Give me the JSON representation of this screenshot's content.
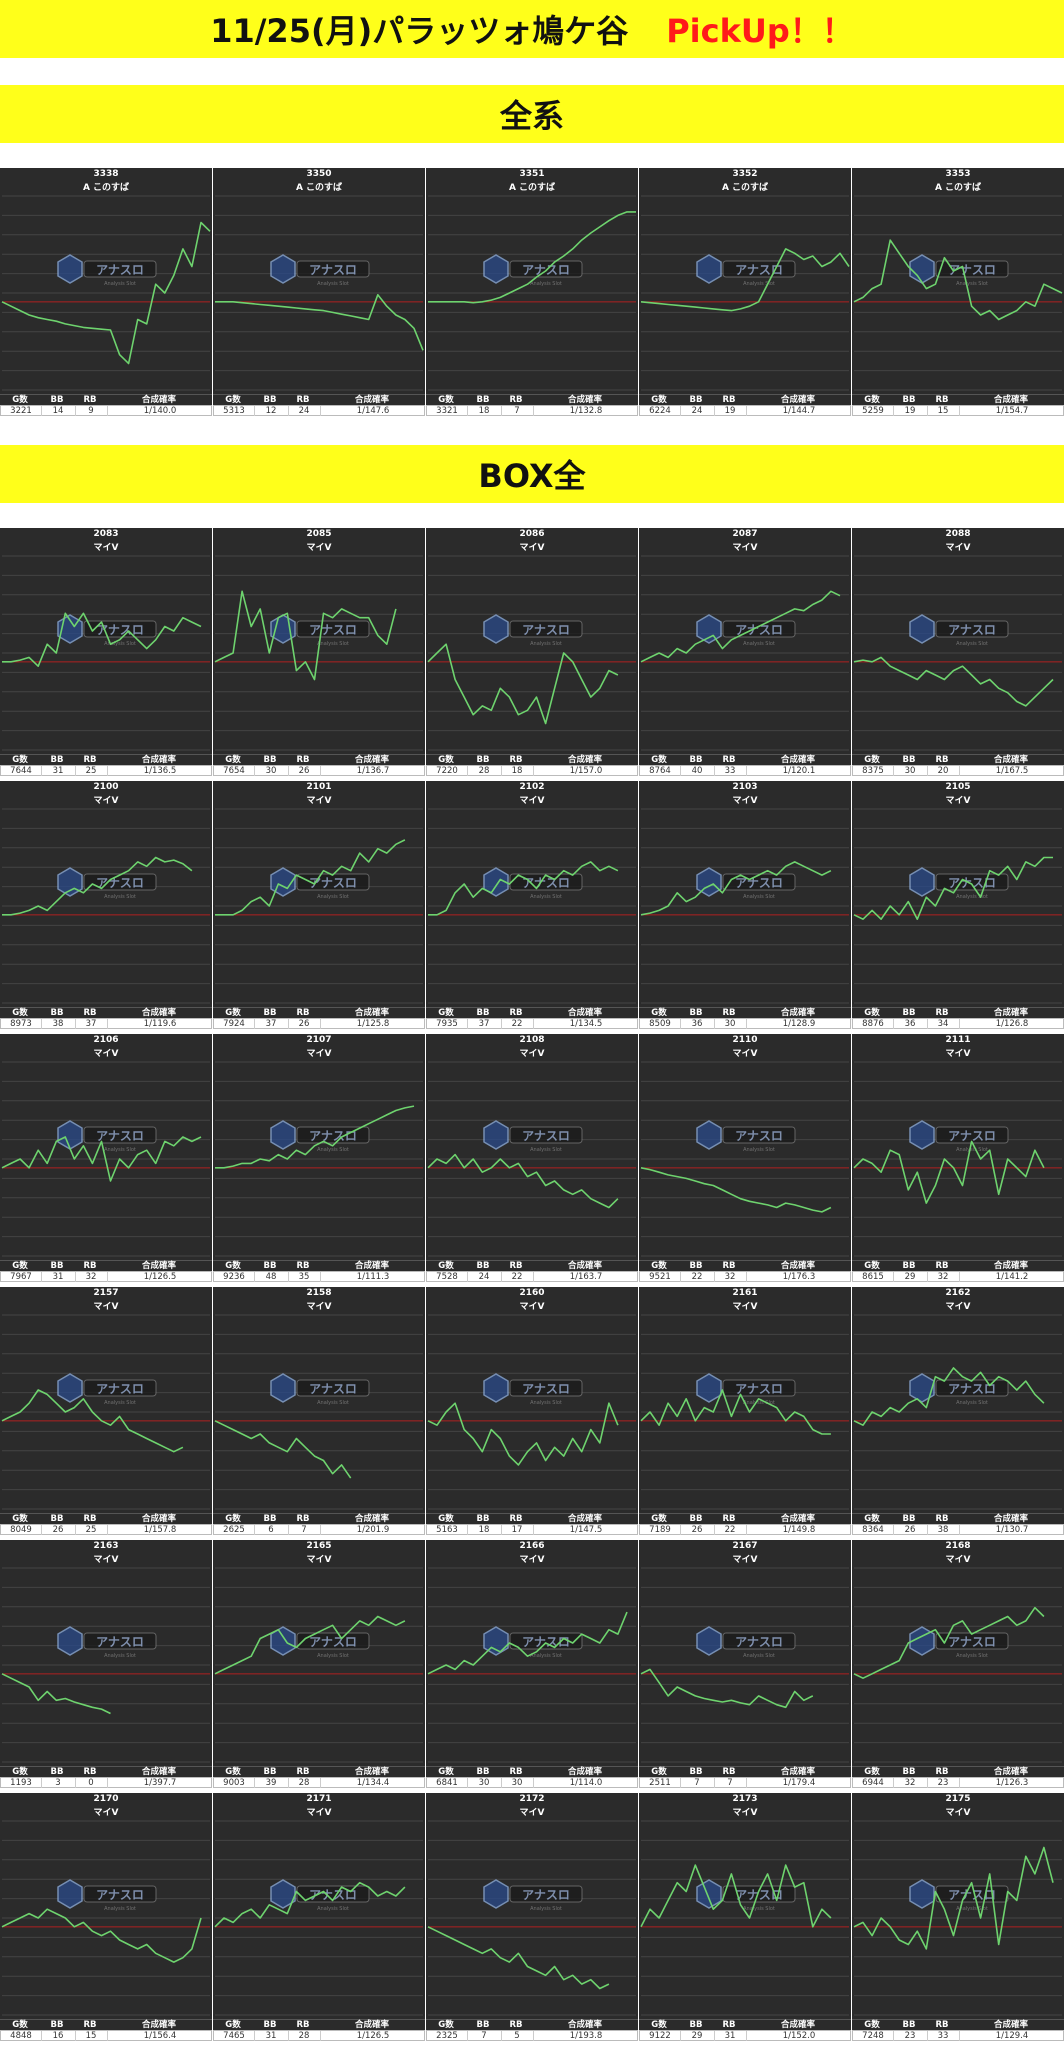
{
  "title": {
    "main": "11/25(月)パラッツォ鳩ケ谷",
    "pick": "PickUp！！",
    "color": "#ff1a1a"
  },
  "headers": {
    "g": "G数",
    "bb": "BB",
    "rb": "RB",
    "prob": "合成確率"
  },
  "watermark": {
    "text": "アナスロ",
    "sub": "Analysis Slot"
  },
  "sections": [
    {
      "label": "全系"
    },
    {
      "label": "BOX全"
    }
  ],
  "chart_data": [
    {
      "section": 0,
      "type": "line",
      "machine": "3338",
      "name": "A このすば",
      "g": "3221",
      "bb": "14",
      "rb": "9",
      "prob": "1/140.0",
      "values": [
        0,
        -5,
        -10,
        -15,
        -18,
        -20,
        -22,
        -25,
        -27,
        -29,
        -30,
        -31,
        -32,
        -60,
        -70,
        -20,
        -25,
        20,
        10,
        30,
        60,
        40,
        90,
        80
      ]
    },
    {
      "section": 0,
      "type": "line",
      "machine": "3350",
      "name": "A このすば",
      "g": "5313",
      "bb": "12",
      "rb": "24",
      "prob": "1/147.6",
      "values": [
        0,
        0,
        0,
        -1,
        -2,
        -3,
        -4,
        -5,
        -6,
        -7,
        -8,
        -9,
        -10,
        -12,
        -14,
        -16,
        -18,
        -20,
        8,
        -5,
        -15,
        -20,
        -30,
        -55
      ]
    },
    {
      "section": 0,
      "type": "line",
      "machine": "3351",
      "name": "A このすば",
      "g": "3321",
      "bb": "18",
      "rb": "7",
      "prob": "1/132.8",
      "values": [
        0,
        0,
        0,
        0,
        0,
        -1,
        0,
        2,
        5,
        10,
        15,
        20,
        28,
        35,
        45,
        52,
        60,
        70,
        78,
        85,
        92,
        98,
        102,
        102
      ]
    },
    {
      "section": 0,
      "type": "line",
      "machine": "3352",
      "name": "A このすば",
      "g": "6224",
      "bb": "24",
      "rb": "19",
      "prob": "1/144.7",
      "values": [
        0,
        -1,
        -2,
        -3,
        -4,
        -5,
        -6,
        -7,
        -8,
        -9,
        -10,
        -8,
        -5,
        0,
        20,
        40,
        60,
        55,
        48,
        52,
        40,
        45,
        55,
        40
      ]
    },
    {
      "section": 0,
      "type": "line",
      "machine": "3353",
      "name": "A このすば",
      "g": "5259",
      "bb": "19",
      "rb": "15",
      "prob": "1/154.7",
      "values": [
        0,
        5,
        15,
        20,
        70,
        55,
        40,
        30,
        15,
        20,
        50,
        35,
        40,
        -5,
        -15,
        -10,
        -20,
        -15,
        -10,
        0,
        -5,
        20,
        15,
        10
      ]
    },
    {
      "section": 1,
      "type": "line",
      "machine": "2083",
      "name": "マイV",
      "g": "7644",
      "bb": "31",
      "rb": "25",
      "prob": "1/136.5",
      "values": [
        0,
        0,
        2,
        5,
        -5,
        20,
        10,
        55,
        40,
        55,
        35,
        45,
        20,
        25,
        35,
        25,
        15,
        25,
        40,
        35,
        50,
        45,
        40
      ]
    },
    {
      "section": 1,
      "type": "line",
      "machine": "2085",
      "name": "マイV",
      "g": "7654",
      "bb": "30",
      "rb": "26",
      "prob": "1/136.7",
      "values": [
        0,
        5,
        10,
        80,
        40,
        60,
        10,
        50,
        55,
        -10,
        0,
        -20,
        55,
        50,
        60,
        55,
        50,
        50,
        30,
        20,
        60
      ]
    },
    {
      "section": 1,
      "type": "line",
      "machine": "2086",
      "name": "マイV",
      "g": "7220",
      "bb": "28",
      "rb": "18",
      "prob": "1/157.0",
      "values": [
        0,
        10,
        20,
        -20,
        -40,
        -60,
        -50,
        -55,
        -30,
        -40,
        -60,
        -55,
        -40,
        -70,
        -30,
        10,
        0,
        -20,
        -40,
        -30,
        -10,
        -15
      ]
    },
    {
      "section": 1,
      "type": "line",
      "machine": "2087",
      "name": "マイV",
      "g": "8764",
      "bb": "40",
      "rb": "33",
      "prob": "1/120.1",
      "values": [
        0,
        5,
        10,
        5,
        15,
        10,
        20,
        25,
        30,
        15,
        25,
        30,
        35,
        40,
        45,
        50,
        55,
        60,
        58,
        65,
        70,
        80,
        75
      ]
    },
    {
      "section": 1,
      "type": "line",
      "machine": "2088",
      "name": "マイV",
      "g": "8375",
      "bb": "30",
      "rb": "20",
      "prob": "1/167.5",
      "values": [
        0,
        2,
        0,
        5,
        -5,
        -10,
        -15,
        -20,
        -10,
        -15,
        -20,
        -10,
        -5,
        -15,
        -25,
        -20,
        -30,
        -35,
        -45,
        -50,
        -40,
        -30,
        -20
      ]
    },
    {
      "section": 1,
      "type": "line",
      "machine": "2100",
      "name": "マイV",
      "g": "8973",
      "bb": "38",
      "rb": "37",
      "prob": "1/119.6",
      "values": [
        0,
        0,
        2,
        5,
        10,
        5,
        15,
        25,
        30,
        25,
        35,
        30,
        40,
        45,
        50,
        60,
        55,
        65,
        60,
        62,
        58,
        50
      ]
    },
    {
      "section": 1,
      "type": "line",
      "machine": "2101",
      "name": "マイV",
      "g": "7924",
      "bb": "37",
      "rb": "26",
      "prob": "1/125.8",
      "values": [
        0,
        0,
        0,
        5,
        15,
        20,
        10,
        35,
        30,
        45,
        40,
        35,
        50,
        45,
        55,
        50,
        70,
        60,
        75,
        70,
        80,
        85
      ]
    },
    {
      "section": 1,
      "type": "line",
      "machine": "2102",
      "name": "マイV",
      "g": "7935",
      "bb": "37",
      "rb": "22",
      "prob": "1/134.5",
      "values": [
        0,
        0,
        5,
        25,
        35,
        20,
        30,
        25,
        40,
        35,
        45,
        40,
        30,
        45,
        40,
        50,
        45,
        55,
        60,
        50,
        55,
        50
      ]
    },
    {
      "section": 1,
      "type": "line",
      "machine": "2103",
      "name": "マイV",
      "g": "8509",
      "bb": "36",
      "rb": "30",
      "prob": "1/128.9",
      "values": [
        0,
        2,
        5,
        10,
        25,
        15,
        20,
        30,
        35,
        25,
        40,
        45,
        40,
        45,
        50,
        45,
        55,
        60,
        55,
        50,
        45,
        50
      ]
    },
    {
      "section": 1,
      "type": "line",
      "machine": "2105",
      "name": "マイV",
      "g": "8876",
      "bb": "36",
      "rb": "34",
      "prob": "1/126.8",
      "values": [
        0,
        -5,
        5,
        -5,
        10,
        0,
        15,
        -5,
        20,
        10,
        30,
        25,
        40,
        35,
        20,
        50,
        45,
        55,
        40,
        60,
        55,
        65,
        65
      ]
    },
    {
      "section": 1,
      "type": "line",
      "machine": "2106",
      "name": "マイV",
      "g": "7967",
      "bb": "31",
      "rb": "32",
      "prob": "1/126.5",
      "values": [
        0,
        5,
        10,
        0,
        20,
        5,
        30,
        35,
        10,
        25,
        5,
        30,
        -15,
        10,
        0,
        15,
        20,
        5,
        30,
        25,
        35,
        30,
        35
      ]
    },
    {
      "section": 1,
      "type": "line",
      "machine": "2107",
      "name": "マイV",
      "g": "9236",
      "bb": "48",
      "rb": "35",
      "prob": "1/111.3",
      "values": [
        0,
        0,
        2,
        5,
        5,
        10,
        8,
        15,
        10,
        20,
        15,
        25,
        30,
        25,
        35,
        40,
        45,
        50,
        55,
        60,
        65,
        68,
        70
      ]
    },
    {
      "section": 1,
      "type": "line",
      "machine": "2108",
      "name": "マイV",
      "g": "7528",
      "bb": "24",
      "rb": "22",
      "prob": "1/163.7",
      "values": [
        0,
        10,
        5,
        15,
        0,
        10,
        -5,
        0,
        10,
        0,
        5,
        -10,
        -5,
        -20,
        -15,
        -25,
        -30,
        -25,
        -35,
        -40,
        -45,
        -35
      ]
    },
    {
      "section": 1,
      "type": "line",
      "machine": "2110",
      "name": "マイV",
      "g": "9521",
      "bb": "22",
      "rb": "32",
      "prob": "1/176.3",
      "values": [
        0,
        -2,
        -5,
        -8,
        -10,
        -12,
        -15,
        -18,
        -20,
        -25,
        -30,
        -35,
        -38,
        -40,
        -42,
        -45,
        -40,
        -42,
        -45,
        -48,
        -50,
        -45
      ]
    },
    {
      "section": 1,
      "type": "line",
      "machine": "2111",
      "name": "マイV",
      "g": "8615",
      "bb": "29",
      "rb": "32",
      "prob": "1/141.2",
      "values": [
        0,
        10,
        5,
        -5,
        20,
        15,
        -25,
        -5,
        -40,
        -20,
        10,
        0,
        -20,
        30,
        10,
        20,
        -30,
        10,
        0,
        -10,
        20,
        0
      ]
    },
    {
      "section": 1,
      "type": "line",
      "machine": "2157",
      "name": "マイV",
      "g": "8049",
      "bb": "26",
      "rb": "25",
      "prob": "1/157.8",
      "values": [
        0,
        5,
        10,
        20,
        35,
        30,
        20,
        10,
        15,
        25,
        10,
        0,
        -5,
        5,
        -10,
        -15,
        -20,
        -25,
        -30,
        -35,
        -30
      ]
    },
    {
      "section": 1,
      "type": "line",
      "machine": "2158",
      "name": "マイV",
      "g": "2625",
      "bb": "6",
      "rb": "7",
      "prob": "1/201.9",
      "values": [
        0,
        -5,
        -10,
        -15,
        -20,
        -15,
        -25,
        -30,
        -35,
        -20,
        -30,
        -40,
        -45,
        -60,
        -50,
        -65
      ]
    },
    {
      "section": 1,
      "type": "line",
      "machine": "2160",
      "name": "マイV",
      "g": "5163",
      "bb": "18",
      "rb": "17",
      "prob": "1/147.5",
      "values": [
        0,
        -5,
        10,
        20,
        -10,
        -20,
        -35,
        -10,
        -20,
        -40,
        -50,
        -35,
        -25,
        -45,
        -30,
        -40,
        -20,
        -35,
        -10,
        -25,
        20,
        -5
      ]
    },
    {
      "section": 1,
      "type": "line",
      "machine": "2161",
      "name": "マイV",
      "g": "7189",
      "bb": "26",
      "rb": "22",
      "prob": "1/149.8",
      "values": [
        0,
        10,
        -5,
        20,
        5,
        25,
        0,
        15,
        10,
        35,
        5,
        30,
        10,
        25,
        20,
        15,
        0,
        10,
        5,
        -10,
        -15,
        -15
      ]
    },
    {
      "section": 1,
      "type": "line",
      "machine": "2162",
      "name": "マイV",
      "g": "8364",
      "bb": "26",
      "rb": "38",
      "prob": "1/130.7",
      "values": [
        0,
        -5,
        10,
        5,
        15,
        10,
        20,
        25,
        15,
        50,
        45,
        60,
        50,
        45,
        55,
        40,
        50,
        45,
        35,
        45,
        30,
        20
      ]
    },
    {
      "section": 1,
      "type": "line",
      "machine": "2163",
      "name": "マイV",
      "g": "1193",
      "bb": "3",
      "rb": "0",
      "prob": "1/397.7",
      "values": [
        0,
        -5,
        -10,
        -15,
        -30,
        -20,
        -30,
        -28,
        -32,
        -35,
        -38,
        -40,
        -45
      ]
    },
    {
      "section": 1,
      "type": "line",
      "machine": "2165",
      "name": "マイV",
      "g": "9003",
      "bb": "39",
      "rb": "28",
      "prob": "1/134.4",
      "values": [
        0,
        5,
        10,
        15,
        20,
        40,
        45,
        50,
        35,
        30,
        40,
        45,
        50,
        55,
        40,
        50,
        60,
        55,
        65,
        60,
        55,
        60
      ]
    },
    {
      "section": 1,
      "type": "line",
      "machine": "2166",
      "name": "マイV",
      "g": "6841",
      "bb": "30",
      "rb": "30",
      "prob": "1/114.0",
      "values": [
        0,
        5,
        10,
        5,
        15,
        10,
        20,
        30,
        25,
        35,
        30,
        20,
        25,
        35,
        30,
        40,
        35,
        45,
        40,
        35,
        50,
        45,
        70
      ]
    },
    {
      "section": 1,
      "type": "line",
      "machine": "2167",
      "name": "マイV",
      "g": "2511",
      "bb": "7",
      "rb": "7",
      "prob": "1/179.4",
      "values": [
        0,
        5,
        -10,
        -25,
        -15,
        -20,
        -25,
        -28,
        -30,
        -32,
        -30,
        -33,
        -35,
        -25,
        -30,
        -35,
        -38,
        -20,
        -30,
        -25
      ]
    },
    {
      "section": 1,
      "type": "line",
      "machine": "2168",
      "name": "マイV",
      "g": "6944",
      "bb": "32",
      "rb": "23",
      "prob": "1/126.3",
      "values": [
        0,
        -5,
        0,
        5,
        10,
        15,
        35,
        40,
        45,
        50,
        35,
        55,
        60,
        45,
        50,
        55,
        60,
        65,
        55,
        60,
        75,
        65
      ]
    },
    {
      "section": 1,
      "type": "line",
      "machine": "2170",
      "name": "マイV",
      "g": "4848",
      "bb": "16",
      "rb": "15",
      "prob": "1/156.4",
      "values": [
        0,
        5,
        10,
        15,
        10,
        20,
        15,
        10,
        0,
        5,
        -5,
        -10,
        -5,
        -15,
        -20,
        -25,
        -20,
        -30,
        -35,
        -40,
        -35,
        -25,
        10
      ]
    },
    {
      "section": 1,
      "type": "line",
      "machine": "2171",
      "name": "マイV",
      "g": "7465",
      "bb": "31",
      "rb": "28",
      "prob": "1/126.5",
      "values": [
        0,
        10,
        5,
        15,
        20,
        10,
        25,
        20,
        15,
        40,
        30,
        35,
        40,
        30,
        45,
        40,
        50,
        45,
        35,
        40,
        35,
        45
      ]
    },
    {
      "section": 1,
      "type": "line",
      "machine": "2172",
      "name": "マイV",
      "g": "2325",
      "bb": "7",
      "rb": "5",
      "prob": "1/193.8",
      "values": [
        0,
        -5,
        -10,
        -15,
        -20,
        -25,
        -30,
        -25,
        -35,
        -40,
        -30,
        -45,
        -50,
        -55,
        -45,
        -60,
        -55,
        -65,
        -60,
        -70,
        -65
      ]
    },
    {
      "section": 1,
      "type": "line",
      "machine": "2173",
      "name": "マイV",
      "g": "9122",
      "bb": "29",
      "rb": "31",
      "prob": "1/152.0",
      "values": [
        0,
        20,
        10,
        30,
        50,
        40,
        70,
        45,
        20,
        30,
        60,
        25,
        10,
        40,
        60,
        30,
        70,
        45,
        50,
        0,
        20,
        10
      ]
    },
    {
      "section": 1,
      "type": "line",
      "machine": "2175",
      "name": "マイV",
      "g": "7248",
      "bb": "23",
      "rb": "33",
      "prob": "1/129.4",
      "values": [
        0,
        5,
        -10,
        10,
        0,
        -15,
        -20,
        -5,
        -25,
        40,
        20,
        -10,
        30,
        50,
        10,
        60,
        -20,
        40,
        30,
        80,
        60,
        90,
        50
      ]
    }
  ]
}
